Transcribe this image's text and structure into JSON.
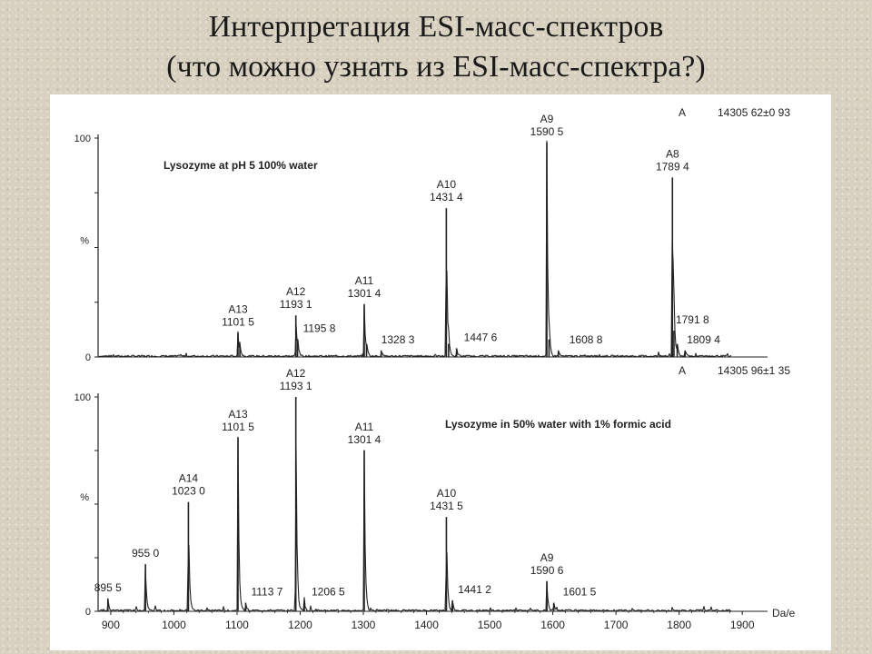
{
  "slide": {
    "title_line1": "Интерпретация ESI-масс-спектров",
    "title_line2": "(что можно узнать из ESI-масс-спектра?)"
  },
  "colors": {
    "background": "#d8d1c0",
    "figure": "#ffffff",
    "ink": "#222222"
  },
  "chart_data": [
    {
      "type": "line",
      "title": "Lysozyme at pH 5 100% water",
      "ylabel": "%",
      "xlim": [
        880,
        1940
      ],
      "ylim": [
        0,
        100
      ],
      "y_ticks": [
        "100",
        "0"
      ],
      "mass_annotation": {
        "label": "A",
        "value": "14305 62±0 93"
      },
      "peaks": [
        {
          "mz": 1101.5,
          "intensity": 11,
          "ion": "A13",
          "mz_label": "1101 5"
        },
        {
          "mz": 1104.5,
          "intensity": 5,
          "ion": "",
          "mz_label": ""
        },
        {
          "mz": 1193.1,
          "intensity": 19,
          "ion": "A12",
          "mz_label": "1193 1"
        },
        {
          "mz": 1195.8,
          "intensity": 8,
          "ion": "",
          "mz_label": "1195 8"
        },
        {
          "mz": 1301.4,
          "intensity": 24,
          "ion": "A11",
          "mz_label": "1301 4"
        },
        {
          "mz": 1305,
          "intensity": 6,
          "ion": "",
          "mz_label": ""
        },
        {
          "mz": 1328.3,
          "intensity": 3,
          "ion": "",
          "mz_label": "1328 3"
        },
        {
          "mz": 1431.4,
          "intensity": 68,
          "ion": "A10",
          "mz_label": "1431 4"
        },
        {
          "mz": 1435,
          "intensity": 6,
          "ion": "",
          "mz_label": ""
        },
        {
          "mz": 1447.6,
          "intensity": 4,
          "ion": "",
          "mz_label": "1447 6"
        },
        {
          "mz": 1590.5,
          "intensity": 98,
          "ion": "A9",
          "mz_label": "1590 5"
        },
        {
          "mz": 1594,
          "intensity": 8,
          "ion": "",
          "mz_label": ""
        },
        {
          "mz": 1608.8,
          "intensity": 3,
          "ion": "",
          "mz_label": "1608 8"
        },
        {
          "mz": 1789.4,
          "intensity": 82,
          "ion": "A8",
          "mz_label": "1789 4"
        },
        {
          "mz": 1791.8,
          "intensity": 12,
          "ion": "",
          "mz_label": "1791 8"
        },
        {
          "mz": 1797,
          "intensity": 6,
          "ion": "",
          "mz_label": ""
        },
        {
          "mz": 1809.4,
          "intensity": 3,
          "ion": "",
          "mz_label": "1809 4"
        }
      ]
    },
    {
      "type": "line",
      "title": "Lysozyme in 50% water with 1% formic acid",
      "ylabel": "%",
      "xlabel": "Da/e",
      "xlim": [
        880,
        1940
      ],
      "ylim": [
        0,
        100
      ],
      "y_ticks": [
        "100",
        "0"
      ],
      "x_ticks": [
        "900",
        "1000",
        "1100",
        "1200",
        "1300",
        "1400",
        "1500",
        "1600",
        "1700",
        "1800",
        "1900"
      ],
      "mass_annotation": {
        "label": "A",
        "value": "14305 96±1 35"
      },
      "peaks": [
        {
          "mz": 895.5,
          "intensity": 6,
          "ion": "",
          "mz_label": "895 5"
        },
        {
          "mz": 955.0,
          "intensity": 22,
          "ion": "",
          "mz_label": "955 0"
        },
        {
          "mz": 1023.0,
          "intensity": 51,
          "ion": "A14",
          "mz_label": "1023 0"
        },
        {
          "mz": 1101.5,
          "intensity": 81,
          "ion": "A13",
          "mz_label": "1101 5"
        },
        {
          "mz": 1113.7,
          "intensity": 4,
          "ion": "",
          "mz_label": "1113 7"
        },
        {
          "mz": 1193.1,
          "intensity": 100,
          "ion": "A12",
          "mz_label": "1193 1"
        },
        {
          "mz": 1206.5,
          "intensity": 4,
          "ion": "",
          "mz_label": "1206 5"
        },
        {
          "mz": 1301.4,
          "intensity": 75,
          "ion": "A11",
          "mz_label": "1301 4"
        },
        {
          "mz": 1431.5,
          "intensity": 44,
          "ion": "A10",
          "mz_label": "1431 5"
        },
        {
          "mz": 1441.2,
          "intensity": 5,
          "ion": "",
          "mz_label": "1441 2"
        },
        {
          "mz": 1590.6,
          "intensity": 14,
          "ion": "A9",
          "mz_label": "1590 6"
        },
        {
          "mz": 1601.5,
          "intensity": 4,
          "ion": "",
          "mz_label": "1601 5"
        }
      ]
    }
  ]
}
